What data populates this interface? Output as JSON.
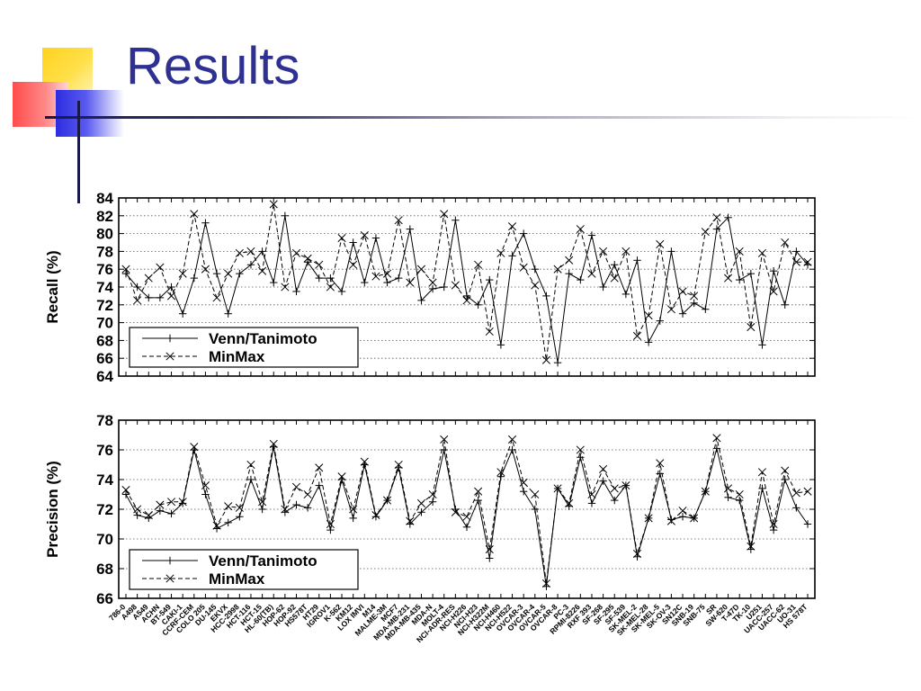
{
  "slide": {
    "title": "Results"
  },
  "colors": {
    "title": "#2e3192",
    "axis": "#000000",
    "grid": "#555555"
  },
  "chart_data": [
    {
      "type": "line",
      "ylabel": "Recall (%)",
      "ylim": [
        64,
        84
      ],
      "yticks": [
        64,
        66,
        68,
        70,
        72,
        74,
        76,
        78,
        80,
        82,
        84
      ],
      "grid": true,
      "legend_position": "bottom-left",
      "series": [
        {
          "name": "Venn/Tanimoto",
          "marker": "plus",
          "dash": "solid",
          "values": [
            75.5,
            74.0,
            72.8,
            72.8,
            74.0,
            71.0,
            75.0,
            81.2,
            75.5,
            71.0,
            75.5,
            76.5,
            78.0,
            74.5,
            82.0,
            73.5,
            76.8,
            75.0,
            75.0,
            73.5,
            79.0,
            74.5,
            79.5,
            74.5,
            75.0,
            80.5,
            72.5,
            73.8,
            74.0,
            81.5,
            73.0,
            72.0,
            74.8,
            67.5,
            77.5,
            80.0,
            76.0,
            73.0,
            65.5,
            75.5,
            74.8,
            79.8,
            74.0,
            76.5,
            73.2,
            77.0,
            67.8,
            70.2,
            78.0,
            71.0,
            72.2,
            71.5,
            80.5,
            81.8,
            74.8,
            75.5,
            67.5,
            75.8,
            72.0,
            78.0,
            76.5
          ]
        },
        {
          "name": "MinMax",
          "marker": "x",
          "dash": "dashed",
          "values": [
            76.0,
            72.5,
            75.0,
            76.2,
            73.0,
            75.5,
            82.2,
            76.0,
            72.8,
            75.5,
            77.8,
            78.0,
            75.8,
            83.3,
            74.0,
            77.8,
            77.2,
            76.5,
            74.0,
            79.5,
            76.5,
            79.8,
            75.2,
            75.5,
            81.5,
            74.5,
            76.0,
            74.5,
            82.2,
            74.2,
            72.5,
            76.5,
            69.0,
            77.8,
            80.8,
            76.2,
            74.2,
            65.8,
            76.0,
            77.0,
            80.5,
            75.5,
            78.0,
            75.0,
            78.0,
            68.5,
            70.8,
            78.8,
            71.5,
            73.5,
            73.0,
            80.2,
            81.8,
            75.0,
            78.0,
            69.5,
            77.8,
            73.5,
            79.0,
            76.8,
            76.8
          ]
        }
      ]
    },
    {
      "type": "line",
      "ylabel": "Precision (%)",
      "ylim": [
        66,
        78
      ],
      "yticks": [
        66,
        68,
        70,
        72,
        74,
        76,
        78
      ],
      "grid": true,
      "legend_position": "bottom-left",
      "series": [
        {
          "name": "Venn/Tanimoto",
          "marker": "plus",
          "dash": "solid",
          "values": [
            73.0,
            71.6,
            71.4,
            71.9,
            71.7,
            72.4,
            76.0,
            73.0,
            70.7,
            71.1,
            71.5,
            74.0,
            72.0,
            76.2,
            71.8,
            72.3,
            72.1,
            73.6,
            70.6,
            74.0,
            71.4,
            75.0,
            71.5,
            72.6,
            74.8,
            71.0,
            71.8,
            72.5,
            76.0,
            72.0,
            70.8,
            72.6,
            68.7,
            74.2,
            76.0,
            73.2,
            72.0,
            66.8,
            73.4,
            72.2,
            75.5,
            72.4,
            73.9,
            72.6,
            73.6,
            68.8,
            71.4,
            74.4,
            71.3,
            71.5,
            71.4,
            73.2,
            76.1,
            72.8,
            72.6,
            69.3,
            73.4,
            70.6,
            74.0,
            72.1,
            71.0
          ]
        },
        {
          "name": "MinMax",
          "marker": "x",
          "dash": "dashed",
          "values": [
            73.3,
            72.0,
            71.6,
            72.3,
            72.5,
            72.5,
            76.2,
            73.6,
            70.9,
            72.2,
            72.1,
            75.0,
            72.5,
            76.4,
            72.0,
            73.5,
            73.0,
            74.8,
            71.0,
            74.2,
            72.0,
            75.2,
            71.6,
            72.6,
            75.0,
            71.2,
            72.4,
            73.0,
            76.7,
            71.8,
            71.5,
            73.2,
            69.3,
            74.5,
            76.7,
            73.8,
            73.0,
            67.0,
            73.4,
            72.4,
            76.0,
            73.0,
            74.7,
            73.4,
            73.6,
            69.0,
            71.4,
            75.1,
            71.2,
            71.9,
            71.4,
            73.2,
            76.8,
            73.4,
            73.0,
            69.5,
            74.5,
            71.0,
            74.6,
            73.1,
            73.2
          ]
        }
      ]
    }
  ],
  "x_categories": [
    "786-0",
    "A498",
    "A549",
    "ACHN",
    "BT-549",
    "CAKI-1",
    "CCRF-CEM",
    "COLO 205",
    "DU-145",
    "EKVX",
    "HCC-2998",
    "HCT-116",
    "HCT-15",
    "HL-60(TB)",
    "HOP-62",
    "HOP-92",
    "HS578T",
    "HT29",
    "IGROV1",
    "K-562",
    "KM12",
    "LOX IMVI",
    "M14",
    "MALME-3M",
    "MCF7",
    "MDA-MB-231",
    "MDA-MB-435",
    "MDA-N",
    "MOLT-4",
    "NCI-ADR-RES",
    "NCI-H226",
    "NCI-H23",
    "NCI-H322M",
    "NCI-H460",
    "NCI-H522",
    "OVCAR-3",
    "OVCAR-4",
    "OVCAR-5",
    "OVCAR-8",
    "PC-3",
    "RPMI-8226",
    "RXF 393",
    "SF-268",
    "SF-295",
    "SF-539",
    "SK-MEL-2",
    "SK-MEL-28",
    "SK-MEL-5",
    "SK-OV-3",
    "SN12C",
    "SNB-19",
    "SNB-75",
    "SR",
    "SW-620",
    "T-47D",
    "TK-10",
    "U251",
    "UACC-257",
    "UACC-62",
    "UO-31",
    "HS 578T"
  ]
}
